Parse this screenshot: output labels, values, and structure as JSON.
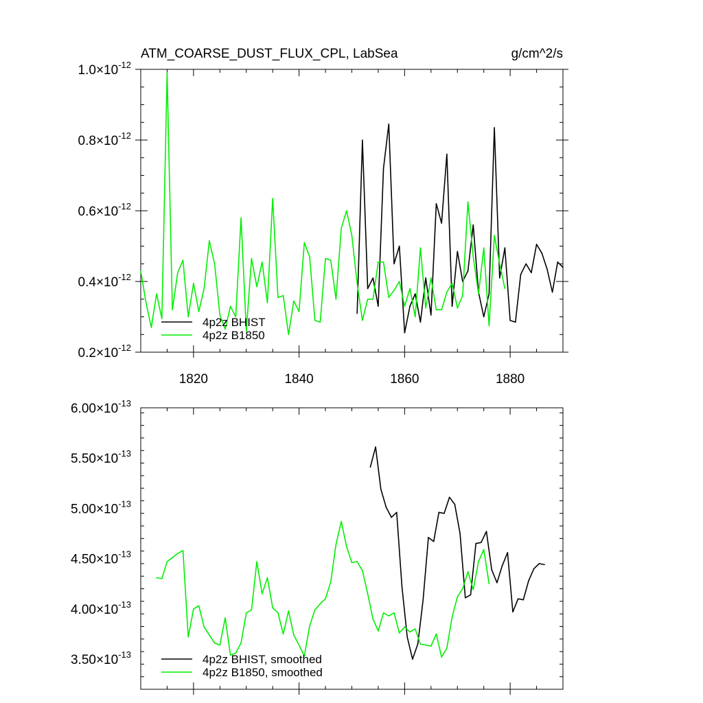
{
  "chart_data": [
    {
      "type": "line",
      "title": "ATM_COARSE_DUST_FLUX_CPL, LabSea",
      "units": "g/cm^2/s",
      "xlim": [
        1810,
        1890
      ],
      "ylim": [
        2e-13,
        1e-12
      ],
      "xticks": [
        1820,
        1840,
        1860,
        1880
      ],
      "xtick_labels": [
        "1820",
        "1840",
        "1860",
        "1880"
      ],
      "yticks": [
        2e-13,
        4e-13,
        6e-13,
        8e-13,
        1e-12
      ],
      "ytick_labels": [
        {
          "mantissa": "0.2",
          "exp": "-12"
        },
        {
          "mantissa": "0.4",
          "exp": "-12"
        },
        {
          "mantissa": "0.6",
          "exp": "-12"
        },
        {
          "mantissa": "0.8",
          "exp": "-12"
        },
        {
          "mantissa": "1.0",
          "exp": "-12"
        }
      ],
      "legend_placement": "bottom-left",
      "series": [
        {
          "name": "4p2z BHIST",
          "color": "#000000",
          "x": [
            1851,
            1852,
            1853,
            1854,
            1855,
            1856,
            1857,
            1858,
            1859,
            1860,
            1861,
            1862,
            1863,
            1864,
            1865,
            1866,
            1867,
            1868,
            1869,
            1870,
            1871,
            1872,
            1873,
            1874,
            1875,
            1876,
            1877,
            1878,
            1879,
            1880,
            1881,
            1882,
            1883,
            1884,
            1885,
            1886,
            1887,
            1888,
            1889,
            1890
          ],
          "values": [
            3.1e-13,
            8e-13,
            3.8e-13,
            4.1e-13,
            3.3e-13,
            7.2e-13,
            8.45e-13,
            4.5e-13,
            5e-13,
            2.55e-13,
            3.3e-13,
            3.65e-13,
            2.85e-13,
            4.1e-13,
            3.05e-13,
            6.2e-13,
            5.65e-13,
            7.6e-13,
            3.3e-13,
            4.85e-13,
            4e-13,
            4.3e-13,
            5.6e-13,
            3.7e-13,
            3e-13,
            3.65e-13,
            8.35e-13,
            4.1e-13,
            4.95e-13,
            2.9e-13,
            2.85e-13,
            4.2e-13,
            4.5e-13,
            4.25e-13,
            5.05e-13,
            4.8e-13,
            4.35e-13,
            3.7e-13,
            4.55e-13,
            4.4e-13
          ]
        },
        {
          "name": "4p2z B1850",
          "color": "#00ee00",
          "x": [
            1810,
            1811,
            1812,
            1813,
            1814,
            1815,
            1816,
            1817,
            1818,
            1819,
            1820,
            1821,
            1822,
            1823,
            1824,
            1825,
            1826,
            1827,
            1828,
            1829,
            1830,
            1831,
            1832,
            1833,
            1834,
            1835,
            1836,
            1837,
            1838,
            1839,
            1840,
            1841,
            1842,
            1843,
            1844,
            1845,
            1846,
            1847,
            1848,
            1849,
            1850,
            1851,
            1852,
            1853,
            1854,
            1855,
            1856,
            1857,
            1858,
            1859,
            1860,
            1861,
            1862,
            1863,
            1864,
            1865,
            1866,
            1867,
            1868,
            1869,
            1870,
            1871,
            1872,
            1873,
            1874,
            1875,
            1876,
            1877,
            1878,
            1879
          ],
          "values": [
            4.3e-13,
            3.4e-13,
            2.7e-13,
            3.65e-13,
            2.95e-13,
            9.9e-13,
            3.2e-13,
            4.25e-13,
            4.6e-13,
            3e-13,
            3.95e-13,
            3.15e-13,
            3.8e-13,
            5.15e-13,
            4.5e-13,
            3.05e-13,
            2.65e-13,
            3.3e-13,
            3e-13,
            5.8e-13,
            2.6e-13,
            4.65e-13,
            3.85e-13,
            4.55e-13,
            3.4e-13,
            6.35e-13,
            3.55e-13,
            3.6e-13,
            2.5e-13,
            3.45e-13,
            3.15e-13,
            5.1e-13,
            4.7e-13,
            2.9e-13,
            2.85e-13,
            4.65e-13,
            4.6e-13,
            3.5e-13,
            5.5e-13,
            6e-13,
            5.3e-13,
            3.95e-13,
            2.9e-13,
            3.5e-13,
            3.5e-13,
            4.55e-13,
            4.55e-13,
            3.55e-13,
            3.75e-13,
            4e-13,
            3.3e-13,
            3.8e-13,
            3e-13,
            4.95e-13,
            3.25e-13,
            4.1e-13,
            3.2e-13,
            3.2e-13,
            3.7e-13,
            3.95e-13,
            3.25e-13,
            3.6e-13,
            6.25e-13,
            4.7e-13,
            3.65e-13,
            4.95e-13,
            2.75e-13,
            5.3e-13,
            4.5e-13,
            3.8e-13
          ]
        }
      ]
    },
    {
      "type": "line",
      "xlim": [
        1810,
        1890
      ],
      "ylim": [
        3.2e-13,
        6e-13
      ],
      "xticks": [
        1820,
        1840,
        1860,
        1880
      ],
      "yticks": [
        3.5e-13,
        4e-13,
        4.5e-13,
        5e-13,
        5.5e-13,
        6e-13
      ],
      "ytick_labels": [
        {
          "mantissa": "3.50",
          "exp": "-13"
        },
        {
          "mantissa": "4.00",
          "exp": "-13"
        },
        {
          "mantissa": "4.50",
          "exp": "-13"
        },
        {
          "mantissa": "5.00",
          "exp": "-13"
        },
        {
          "mantissa": "5.50",
          "exp": "-13"
        },
        {
          "mantissa": "6.00",
          "exp": "-13"
        }
      ],
      "legend_placement": "bottom-left",
      "series": [
        {
          "name": "4p2z BHIST, smoothed",
          "color": "#000000",
          "x": [
            1853.5,
            1854.5,
            1855.5,
            1856.5,
            1857.5,
            1858.5,
            1859.5,
            1860.5,
            1861.5,
            1862.5,
            1863.5,
            1864.5,
            1865.5,
            1866.5,
            1867.5,
            1868.5,
            1869.5,
            1870.5,
            1871.5,
            1872.5,
            1873.5,
            1874.5,
            1875.5,
            1876.5,
            1877.5,
            1878.5,
            1879.5,
            1880.5,
            1881.5,
            1882.5,
            1883.5,
            1884.5,
            1885.5,
            1886.5
          ],
          "values": [
            5.41e-13,
            5.61e-13,
            5.19e-13,
            5.01e-13,
            4.91e-13,
            4.96e-13,
            4.22e-13,
            3.72e-13,
            3.5e-13,
            3.65e-13,
            4.09e-13,
            4.71e-13,
            4.67e-13,
            4.96e-13,
            4.95e-13,
            5.11e-13,
            5.04e-13,
            4.75e-13,
            4.11e-13,
            4.14e-13,
            4.65e-13,
            4.66e-13,
            4.77e-13,
            4.39e-13,
            4.26e-13,
            4.43e-13,
            4.56e-13,
            3.97e-13,
            4.1e-13,
            4.09e-13,
            4.28e-13,
            4.4e-13,
            4.45e-13,
            4.44e-13
          ]
        },
        {
          "name": "4p2z B1850, smoothed",
          "color": "#00ee00",
          "x": [
            1813,
            1814,
            1815,
            1816,
            1817,
            1818,
            1819,
            1820,
            1821,
            1822,
            1823,
            1824,
            1825,
            1826,
            1827,
            1828,
            1829,
            1830,
            1831,
            1832,
            1833,
            1834,
            1835,
            1836,
            1837,
            1838,
            1839,
            1840,
            1841,
            1842,
            1843,
            1844,
            1845,
            1846,
            1847,
            1848,
            1849,
            1850,
            1851,
            1852,
            1853,
            1854,
            1855,
            1856,
            1857,
            1858,
            1859,
            1860,
            1861,
            1862,
            1863,
            1864,
            1865,
            1866,
            1867,
            1868,
            1869,
            1870,
            1871,
            1872,
            1873,
            1874,
            1875,
            1876
          ],
          "values": [
            4.31e-13,
            4.3e-13,
            4.47e-13,
            4.51e-13,
            4.55e-13,
            4.58e-13,
            3.72e-13,
            4e-13,
            4.03e-13,
            3.82e-13,
            3.74e-13,
            3.66e-13,
            3.64e-13,
            3.91e-13,
            3.54e-13,
            3.56e-13,
            3.66e-13,
            3.96e-13,
            3.99e-13,
            4.47e-13,
            4.15e-13,
            4.31e-13,
            4.01e-13,
            3.96e-13,
            3.75e-13,
            3.98e-13,
            3.74e-13,
            3.64e-13,
            3.53e-13,
            3.83e-13,
            3.99e-13,
            4.05e-13,
            4.1e-13,
            4.27e-13,
            4.64e-13,
            4.87e-13,
            4.62e-13,
            4.46e-13,
            4.47e-13,
            4.38e-13,
            4.15e-13,
            3.9e-13,
            3.78e-13,
            3.96e-13,
            3.93e-13,
            3.96e-13,
            3.76e-13,
            3.82e-13,
            3.77e-13,
            3.8e-13,
            3.65e-13,
            3.64e-13,
            3.63e-13,
            3.75e-13,
            3.52e-13,
            3.61e-13,
            3.92e-13,
            4.12e-13,
            4.2e-13,
            4.37e-13,
            4.19e-13,
            4.47e-13,
            4.59e-13,
            4.25e-13
          ]
        }
      ]
    }
  ]
}
